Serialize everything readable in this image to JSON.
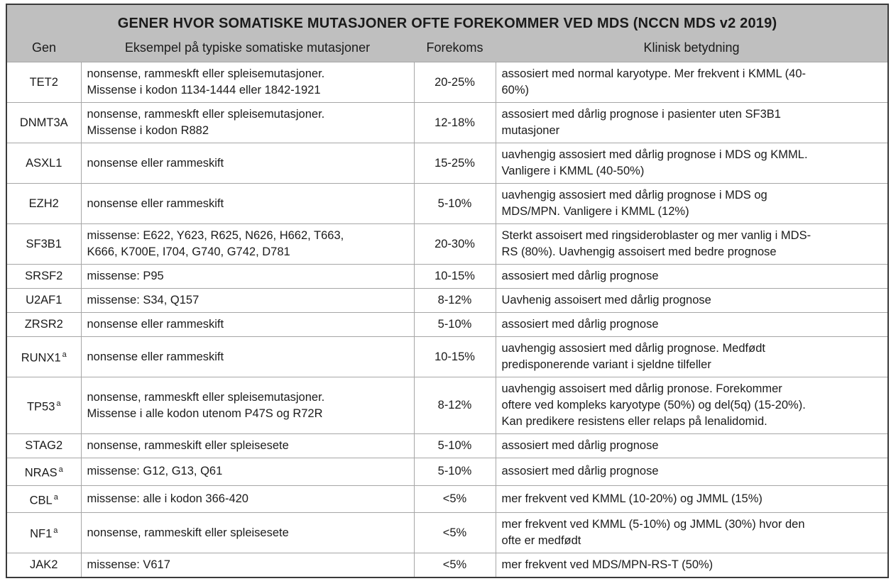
{
  "title": "GENER HVOR SOMATISKE  MUTASJONER OFTE FOREKOMMER VED MDS (NCCN MDS v2 2019)",
  "columns": {
    "gene": "Gen",
    "mutations": "Eksempel på typiske somatiske mutasjoner",
    "frequency": "Forekoms",
    "clinical": "Klinisk betydning"
  },
  "colors": {
    "header_bg": "#bfbfbf",
    "grid_line": "#a6a6a6",
    "outer_border": "#3a3a3a",
    "body_bg": "#ffffff",
    "text": "#1b1b1b"
  },
  "table": {
    "rows": [
      {
        "gene": "TET2",
        "sup": "",
        "mutations": "nonsense, rammeskft eller spleisemutasjoner.\nMissense i kodon 1134-1444 eller 1842-1921",
        "frequency": "20-25%",
        "clinical": "assosiert med normal karyotype. Mer frekvent i KMML (40-\n60%)"
      },
      {
        "gene": "DNMT3A",
        "sup": "",
        "mutations": "nonsense, rammeskft eller spleisemutasjoner.\nMissense i kodon R882",
        "frequency": "12-18%",
        "clinical": "assosiert med dårlig prognose i pasienter uten SF3B1\nmutasjoner"
      },
      {
        "gene": "ASXL1",
        "sup": "",
        "mutations": "nonsense eller rammeskift",
        "frequency": "15-25%",
        "clinical": "uavhengig assosiert med dårlig prognose i MDS og KMML.\nVanligere i KMML (40-50%)"
      },
      {
        "gene": "EZH2",
        "sup": "",
        "mutations": "nonsense eller rammeskift",
        "frequency": "5-10%",
        "clinical": "uavhengig assosiert med dårlig prognose i MDS og\nMDS/MPN. Vanligere i KMML (12%)"
      },
      {
        "gene": "SF3B1",
        "sup": "",
        "mutations": "missense: E622, Y623, R625, N626, H662, T663,\nK666, K700E, I704, G740, G742, D781",
        "frequency": "20-30%",
        "clinical": "Sterkt assoisert med ringsideroblaster og mer vanlig i MDS-\nRS (80%). Uavhengig assoisert med bedre prognose"
      },
      {
        "gene": "SRSF2",
        "sup": "",
        "mutations": "missense: P95",
        "frequency": "10-15%",
        "clinical": "assosiert med dårlig prognose"
      },
      {
        "gene": "U2AF1",
        "sup": "",
        "mutations": "missense: S34, Q157",
        "frequency": "8-12%",
        "clinical": "Uavhenig assoisert med dårlig prognose"
      },
      {
        "gene": "ZRSR2",
        "sup": "",
        "mutations": "nonsense eller rammeskift",
        "frequency": "5-10%",
        "clinical": "assosiert med dårlig prognose"
      },
      {
        "gene": "RUNX1",
        "sup": "a",
        "mutations": "nonsense eller rammeskift",
        "frequency": "10-15%",
        "clinical": "uavhengig assosiert med dårlig prognose. Medfødt\npredisponerende variant i sjeldne tilfeller"
      },
      {
        "gene": "TP53",
        "sup": "a",
        "mutations": "nonsense, rammeskft eller spleisemutasjoner.\nMissense i alle kodon utenom P47S og R72R",
        "frequency": "8-12%",
        "clinical": "uavhengig assoisert med dårlig pronose. Forekommer\noftere ved kompleks karyotype (50%) og del(5q) (15-20%).\nKan predikere resistens eller relaps på lenalidomid."
      },
      {
        "gene": "STAG2",
        "sup": "",
        "mutations": "nonsense, rammeskift eller spleisesete",
        "frequency": "5-10%",
        "clinical": "assosiert med dårlig prognose"
      },
      {
        "gene": "NRAS",
        "sup": "a",
        "mutations": "missense: G12, G13, Q61",
        "frequency": "5-10%",
        "clinical": "assosiert med dårlig prognose"
      },
      {
        "gene": "CBL",
        "sup": "a",
        "mutations": "missense: alle i kodon 366-420",
        "frequency": "<5%",
        "clinical": "mer frekvent ved KMML (10-20%) og JMML (15%)"
      },
      {
        "gene": "NF1",
        "sup": "a",
        "mutations": "nonsense, rammeskift eller spleisesete",
        "frequency": "<5%",
        "clinical": "mer frekvent ved KMML (5-10%) og JMML (30%) hvor den\nofte er medfødt"
      },
      {
        "gene": "JAK2",
        "sup": "",
        "mutations": "missense: V617",
        "frequency": "<5%",
        "clinical": "mer frekvent ved MDS/MPN-RS-T (50%)"
      }
    ]
  }
}
